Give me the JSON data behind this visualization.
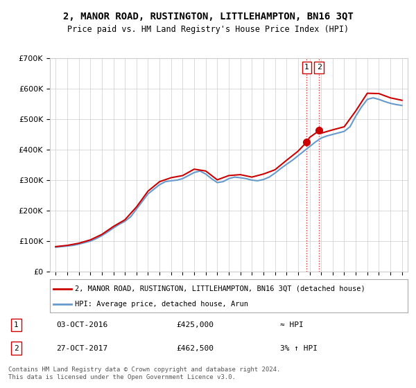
{
  "title": "2, MANOR ROAD, RUSTINGTON, LITTLEHAMPTON, BN16 3QT",
  "subtitle": "Price paid vs. HM Land Registry's House Price Index (HPI)",
  "ylabel_ticks": [
    "£0",
    "£100K",
    "£200K",
    "£300K",
    "£400K",
    "£500K",
    "£600K",
    "£700K"
  ],
  "ylim": [
    0,
    700000
  ],
  "sale1_date": "03-OCT-2016",
  "sale1_price": 425000,
  "sale1_label": "1",
  "sale1_note": "≈ HPI",
  "sale2_date": "27-OCT-2017",
  "sale2_price": 462500,
  "sale2_label": "2",
  "sale2_note": "3% ↑ HPI",
  "legend_line1": "2, MANOR ROAD, RUSTINGTON, LITTLEHAMPTON, BN16 3QT (detached house)",
  "legend_line2": "HPI: Average price, detached house, Arun",
  "footer": "Contains HM Land Registry data © Crown copyright and database right 2024.\nThis data is licensed under the Open Government Licence v3.0.",
  "line_color_price": "#cc0000",
  "line_color_hpi": "#6699cc",
  "sale_marker_color": "#cc0000",
  "vline_color": "#cc0000",
  "background_color": "#ffffff",
  "grid_color": "#cccccc"
}
